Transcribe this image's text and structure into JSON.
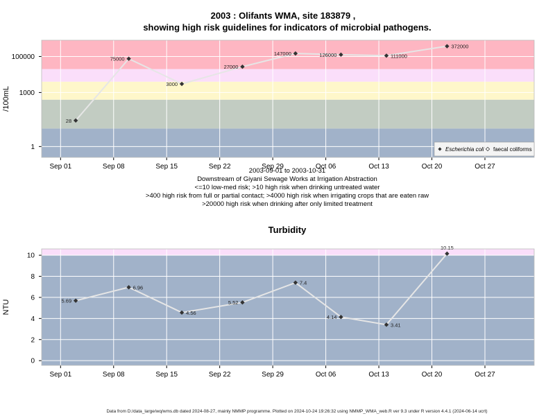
{
  "header": {
    "title_line1": "2003 : Olifants WMA, site 183879 ,",
    "title_line2": "showing high risk guidelines for indicators of microbial pathogens."
  },
  "chart_data": [
    {
      "type": "line",
      "ylabel": "/100mL",
      "yscale": "log",
      "y_ticks": [
        {
          "value": 1,
          "label": "1"
        },
        {
          "value": 1000,
          "label": "1000"
        },
        {
          "value": 100000,
          "label": "100000"
        }
      ],
      "x_ticks": [
        "Sep 01",
        "Sep 08",
        "Sep 15",
        "Sep 22",
        "Sep 29",
        "Oct 06",
        "Oct 13",
        "Oct 20",
        "Oct 27"
      ],
      "x_tick_days": [
        0,
        7,
        14,
        21,
        28,
        35,
        42,
        49,
        56
      ],
      "x_range_days": [
        -2.5,
        62.5
      ],
      "bands": [
        {
          "from": 0.25,
          "to": 10,
          "color": "#a1b2c9"
        },
        {
          "from": 10,
          "to": 400,
          "color": "#c2ccc2"
        },
        {
          "from": 400,
          "to": 4000,
          "color": "#fef7ca"
        },
        {
          "from": 4000,
          "to": 20000,
          "color": "#fadefa"
        },
        {
          "from": 20000,
          "to": 800000,
          "color": "#feb6c2"
        }
      ],
      "series": [
        {
          "name": "Escherichia coli",
          "points": [
            {
              "day": 2,
              "value": 28,
              "label": "28"
            },
            {
              "day": 9,
              "value": 75000,
              "label": "75000"
            },
            {
              "day": 16,
              "value": 3000,
              "label": "3000"
            },
            {
              "day": 24,
              "value": 27000,
              "label": "27000"
            },
            {
              "day": 31,
              "value": 147000,
              "label": "147000"
            },
            {
              "day": 37,
              "value": 126000,
              "label": "126000"
            },
            {
              "day": 43,
              "value": 111000,
              "label": "111000"
            },
            {
              "day": 51,
              "value": 372000,
              "label": "372000"
            }
          ]
        }
      ],
      "legend": {
        "placement": "bottom-right",
        "entries": [
          {
            "label": "Escherichia coli",
            "italic": true,
            "marker": "filled-diamond"
          },
          {
            "label": "faecal coliforms",
            "italic": false,
            "marker": "open-diamond"
          }
        ]
      },
      "notes": [
        "2003-09-01 to 2003-10-31",
        "Downstream of Giyani Sewage Works at Irrigation Abstraction",
        "<=10 low-med risk; >10 high risk when drinking untreated water",
        ">400 high risk from full or partial contact; >4000 high risk when irrigating crops that are eaten raw",
        ">20000 high risk when drinking after only limited treatment"
      ]
    },
    {
      "type": "line",
      "title": "Turbidity",
      "ylabel": "NTU",
      "yscale": "linear",
      "ylim": [
        -0.45,
        10.6
      ],
      "y_ticks": [
        {
          "value": 0,
          "label": "0"
        },
        {
          "value": 2,
          "label": "2"
        },
        {
          "value": 4,
          "label": "4"
        },
        {
          "value": 6,
          "label": "6"
        },
        {
          "value": 8,
          "label": "8"
        },
        {
          "value": 10,
          "label": "10"
        }
      ],
      "x_ticks": [
        "Sep 01",
        "Sep 08",
        "Sep 15",
        "Sep 22",
        "Sep 29",
        "Oct 06",
        "Oct 13",
        "Oct 20",
        "Oct 27"
      ],
      "x_tick_days": [
        0,
        7,
        14,
        21,
        28,
        35,
        42,
        49,
        56
      ],
      "x_range_days": [
        -2.5,
        62.5
      ],
      "bands": [
        {
          "from": -0.45,
          "to": 10,
          "color": "#a1b2c9"
        },
        {
          "from": 10,
          "to": 10.6,
          "color": "#fadefa"
        }
      ],
      "series": [
        {
          "points": [
            {
              "day": 2,
              "value": 5.69,
              "label": "5.69"
            },
            {
              "day": 9,
              "value": 6.96,
              "label": "6.96"
            },
            {
              "day": 16,
              "value": 4.56,
              "label": "4.56"
            },
            {
              "day": 24,
              "value": 5.52,
              "label": "5.52"
            },
            {
              "day": 31,
              "value": 7.4,
              "label": "7.4"
            },
            {
              "day": 37,
              "value": 4.14,
              "label": "4.14"
            },
            {
              "day": 43,
              "value": 3.41,
              "label": "3.41"
            },
            {
              "day": 51,
              "value": 10.15,
              "label": "10.15"
            }
          ]
        }
      ]
    }
  ],
  "footer": "Data from D:/data_large/wq/wms.db dated 2024-08-27, mainly NMMP programme. Plotted on 2024-10-24 19:26:32 using NMMP_WMA_web.R ver 9.3 under R version 4.4.1 (2024-06-14 ucrt)"
}
